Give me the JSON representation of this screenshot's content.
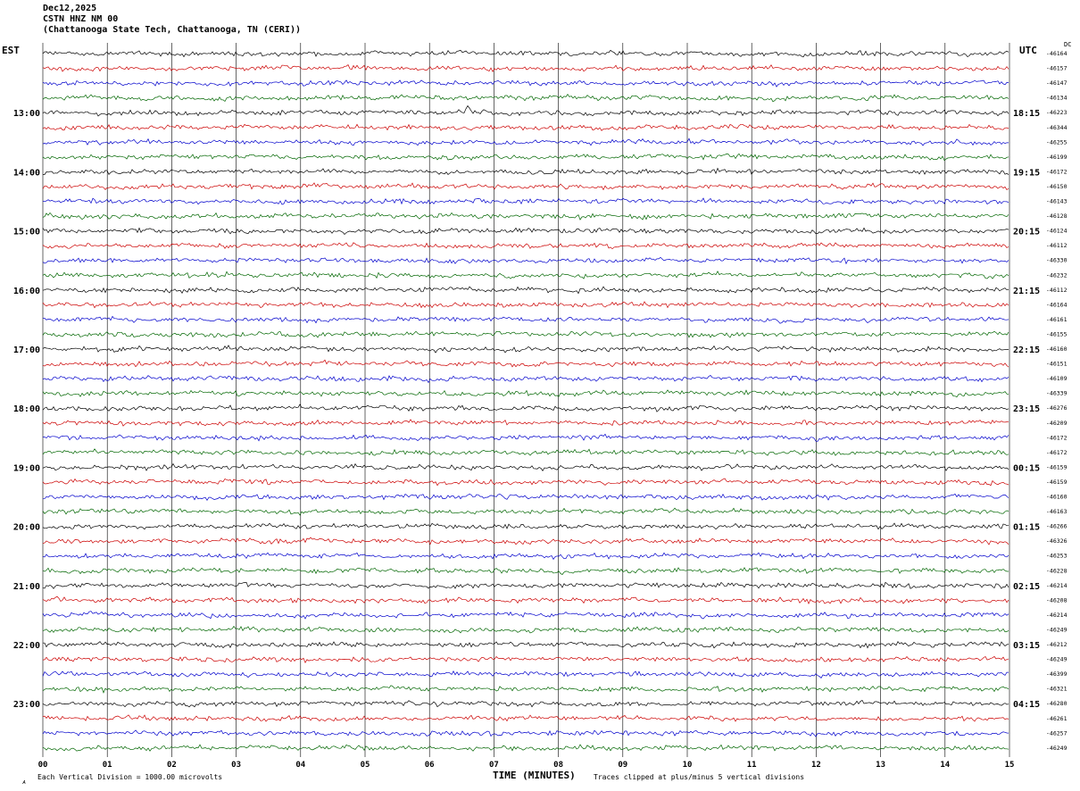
{
  "title": {
    "date": "Dec12,2025",
    "station": "CSTN HNZ NM 00",
    "location": "(Chattanooga State Tech, Chattanooga, TN (CERI))"
  },
  "axes": {
    "left_label": "EST",
    "right_label": "UTC",
    "dc_label": "DC",
    "x_label": "TIME (MINUTES)",
    "x_ticks": [
      "00",
      "01",
      "02",
      "03",
      "04",
      "05",
      "06",
      "07",
      "08",
      "09",
      "10",
      "11",
      "12",
      "13",
      "14",
      "15"
    ],
    "footer_left": "Each Vertical Division = 1000.00 microvolts",
    "footer_right": "Traces clipped at plus/minus 5 vertical divisions",
    "corner_mark": "ᴀ"
  },
  "chart_data": {
    "type": "line",
    "subtype": "helicorder-seismogram",
    "x_unit": "minutes",
    "x_range": [
      0,
      15
    ],
    "minutes_per_line": 15,
    "traces_per_hour": 4,
    "trace_colors": [
      "#000000",
      "#cc0000",
      "#0000cc",
      "#006600"
    ],
    "noise_amplitude_divisions": 0.5,
    "clip_divisions": 5,
    "events": [
      {
        "row_index": 4,
        "minute": 6.6,
        "amplitude": 7,
        "description": "small spike on 13:00 EST / 18:15 UTC trace"
      }
    ],
    "rows": [
      {
        "est": "",
        "utc": "",
        "dc": "-46164"
      },
      {
        "est": "",
        "utc": "",
        "dc": "-46157"
      },
      {
        "est": "",
        "utc": "",
        "dc": "-46147"
      },
      {
        "est": "",
        "utc": "",
        "dc": "-46134"
      },
      {
        "est": "13:00",
        "utc": "18:15",
        "dc": "-46223"
      },
      {
        "est": "",
        "utc": "",
        "dc": "-46344"
      },
      {
        "est": "",
        "utc": "",
        "dc": "-46255"
      },
      {
        "est": "",
        "utc": "",
        "dc": "-46199"
      },
      {
        "est": "14:00",
        "utc": "19:15",
        "dc": "-46172"
      },
      {
        "est": "",
        "utc": "",
        "dc": "-46150"
      },
      {
        "est": "",
        "utc": "",
        "dc": "-46143"
      },
      {
        "est": "",
        "utc": "",
        "dc": "-46128"
      },
      {
        "est": "15:00",
        "utc": "20:15",
        "dc": "-46124"
      },
      {
        "est": "",
        "utc": "",
        "dc": "-46112"
      },
      {
        "est": "",
        "utc": "",
        "dc": "-46330"
      },
      {
        "est": "",
        "utc": "",
        "dc": "-46232"
      },
      {
        "est": "16:00",
        "utc": "21:15",
        "dc": "-46112"
      },
      {
        "est": "",
        "utc": "",
        "dc": "-46164"
      },
      {
        "est": "",
        "utc": "",
        "dc": "-46161"
      },
      {
        "est": "",
        "utc": "",
        "dc": "-46155"
      },
      {
        "est": "17:00",
        "utc": "22:15",
        "dc": "-46160"
      },
      {
        "est": "",
        "utc": "",
        "dc": "-46151"
      },
      {
        "est": "",
        "utc": "",
        "dc": "-46109"
      },
      {
        "est": "",
        "utc": "",
        "dc": "-46339"
      },
      {
        "est": "18:00",
        "utc": "23:15",
        "dc": "-46276"
      },
      {
        "est": "",
        "utc": "",
        "dc": "-46209"
      },
      {
        "est": "",
        "utc": "",
        "dc": "-46172"
      },
      {
        "est": "",
        "utc": "",
        "dc": "-46172"
      },
      {
        "est": "19:00",
        "utc": "00:15",
        "dc": "-46159"
      },
      {
        "est": "",
        "utc": "",
        "dc": "-46159"
      },
      {
        "est": "",
        "utc": "",
        "dc": "-46160"
      },
      {
        "est": "",
        "utc": "",
        "dc": "-46163"
      },
      {
        "est": "20:00",
        "utc": "01:15",
        "dc": "-46266"
      },
      {
        "est": "",
        "utc": "",
        "dc": "-46326"
      },
      {
        "est": "",
        "utc": "",
        "dc": "-46253"
      },
      {
        "est": "",
        "utc": "",
        "dc": "-46228"
      },
      {
        "est": "21:00",
        "utc": "02:15",
        "dc": "-46214"
      },
      {
        "est": "",
        "utc": "",
        "dc": "-46208"
      },
      {
        "est": "",
        "utc": "",
        "dc": "-46214"
      },
      {
        "est": "",
        "utc": "",
        "dc": "-46249"
      },
      {
        "est": "22:00",
        "utc": "03:15",
        "dc": "-46212"
      },
      {
        "est": "",
        "utc": "",
        "dc": "-46249"
      },
      {
        "est": "",
        "utc": "",
        "dc": "-46399"
      },
      {
        "est": "",
        "utc": "",
        "dc": "-46321"
      },
      {
        "est": "23:00",
        "utc": "04:15",
        "dc": "-46280"
      },
      {
        "est": "",
        "utc": "",
        "dc": "-46261"
      },
      {
        "est": "",
        "utc": "",
        "dc": "-46257"
      },
      {
        "est": "",
        "utc": "",
        "dc": "-46249"
      }
    ]
  }
}
